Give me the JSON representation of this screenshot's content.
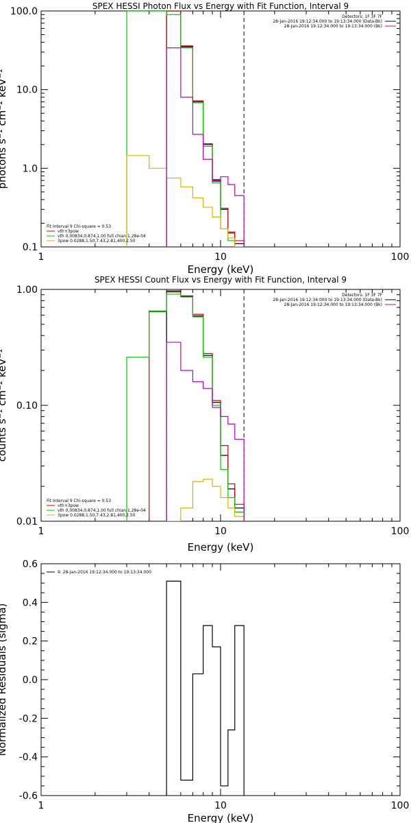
{
  "chart_data": [
    {
      "type": "line",
      "title": "SPEX HESSI Photon Flux vs Energy with Fit Function, Interval 9",
      "xlabel": "Energy (keV)",
      "ylabel": "photons s⁻¹ cm⁻² keV⁻¹",
      "xscale": "log",
      "yscale": "log",
      "xlim": [
        1,
        100
      ],
      "ylim": [
        0.1,
        100
      ],
      "xticks": [
        {
          "v": 1,
          "label": "1"
        },
        {
          "v": 10,
          "label": "10"
        },
        {
          "v": 100,
          "label": "100"
        }
      ],
      "yticks": [
        {
          "v": 0.1,
          "label": "0.1"
        },
        {
          "v": 1,
          "label": "1.0"
        },
        {
          "v": 10,
          "label": "10.0"
        },
        {
          "v": 100,
          "label": "100.0"
        }
      ],
      "edges": [
        3.0,
        4.0,
        5.0,
        6.0,
        7.0,
        8.0,
        9.0,
        10.0,
        11.0,
        12.0,
        13.5
      ],
      "dashed_lines": [
        {
          "x": 5.0,
          "color": "#a000a0"
        },
        {
          "x": 13.5,
          "color": "#000000"
        }
      ],
      "legend_right": [
        {
          "text": "Detectors: 1F 3F 7F",
          "color": ""
        },
        {
          "text": "28-Jan-2016 19:12:34.000 to 19:13:34.000 (Data-Bk)",
          "color": "#000000"
        },
        {
          "text": "28-Jan-2016 19:12:34.000 to 19:13:34.000 (Bk)",
          "color": "#c000c0"
        }
      ],
      "legend_left": [
        {
          "text": "Fit Interval 9   Chi-square = 0.53",
          "color": ""
        },
        {
          "text": "vth+3pow",
          "color": "#d00000"
        },
        {
          "text": "vth 0.00834,0.874,1.00  full chian 1.28e-04",
          "color": "#00cc00"
        },
        {
          "text": "3pow 0.0288,1.50,7.43,2.81,400,2.50",
          "color": "#e0b000"
        }
      ],
      "series": [
        {
          "color": "#000000",
          "values": [
            null,
            null,
            100,
            35,
            7.0,
            2.0,
            0.7,
            0.3,
            0.15,
            0.11
          ]
        },
        {
          "color": "#d00000",
          "values": [
            null,
            null,
            100,
            36,
            7.2,
            2.05,
            0.72,
            0.31,
            0.155,
            0.12
          ]
        },
        {
          "color": "#00cc00",
          "values": [
            100,
            100,
            90,
            34,
            6.8,
            1.9,
            0.65,
            0.17,
            0.12,
            0.1
          ]
        },
        {
          "color": "#e0b000",
          "values": [
            1.45,
            1.0,
            0.75,
            0.58,
            0.42,
            0.32,
            0.24,
            0.17,
            0.13,
            0.1
          ]
        },
        {
          "color": "#c000c0",
          "values": [
            null,
            null,
            34,
            8.0,
            2.7,
            1.3,
            0.68,
            0.78,
            0.62,
            0.45
          ]
        }
      ]
    },
    {
      "type": "line",
      "title": "SPEX HESSI Count Flux vs Energy with Fit Function, Interval 9",
      "xlabel": "Energy (keV)",
      "ylabel": "counts s⁻¹ cm⁻² keV⁻¹",
      "xscale": "log",
      "yscale": "log",
      "xlim": [
        1,
        100
      ],
      "ylim": [
        0.01,
        1
      ],
      "xticks": [
        {
          "v": 1,
          "label": "1"
        },
        {
          "v": 10,
          "label": "10"
        },
        {
          "v": 100,
          "label": "100"
        }
      ],
      "yticks": [
        {
          "v": 0.01,
          "label": "0.01"
        },
        {
          "v": 0.1,
          "label": "0.10"
        },
        {
          "v": 1,
          "label": "1.00"
        }
      ],
      "edges": [
        3.0,
        4.0,
        5.0,
        6.0,
        7.0,
        8.0,
        9.0,
        10.0,
        11.0,
        12.0,
        13.5
      ],
      "dashed_lines": [
        {
          "x": 5.0,
          "color": "#a000a0"
        },
        {
          "x": 13.5,
          "color": "#000000"
        }
      ],
      "legend_right": [
        {
          "text": "Detectors: 1F 3F 7F",
          "color": ""
        },
        {
          "text": "28-Jan-2016 19:12:34.000 to 19:13:34.000 (Data-Bk)",
          "color": "#000000"
        },
        {
          "text": "28-Jan-2016 19:12:34.000 to 19:13:34.000 (Bk)",
          "color": "#c000c0"
        }
      ],
      "legend_left": [
        {
          "text": "Fit Interval 9   Chi-square = 0.53",
          "color": ""
        },
        {
          "text": "vth+3pow",
          "color": "#d00000"
        },
        {
          "text": "vth 0.00834,0.874,1.00  full chian 1.28e-04",
          "color": "#00cc00"
        },
        {
          "text": "3pow 0.0288,1.50,7.43,2.81,400,2.50",
          "color": "#e0b000"
        }
      ],
      "series": [
        {
          "color": "#000000",
          "values": [
            null,
            null,
            0.97,
            0.87,
            0.59,
            0.27,
            0.106,
            0.037,
            0.019,
            0.013
          ]
        },
        {
          "color": "#d00000",
          "values": [
            null,
            0.65,
            0.95,
            0.88,
            0.61,
            0.28,
            0.11,
            0.045,
            0.021,
            0.014
          ]
        },
        {
          "color": "#00cc00",
          "values": [
            0.26,
            0.64,
            0.91,
            0.86,
            0.58,
            0.26,
            0.1,
            0.028,
            0.016,
            0.012
          ]
        },
        {
          "color": "#e0b000",
          "values": [
            null,
            null,
            0.01,
            0.013,
            0.022,
            0.023,
            0.02,
            0.016,
            0.013,
            0.011
          ]
        },
        {
          "color": "#c000c0",
          "values": [
            null,
            null,
            0.35,
            0.2,
            0.16,
            0.14,
            0.096,
            0.08,
            0.069,
            0.051
          ]
        }
      ]
    },
    {
      "type": "line",
      "title": "",
      "xlabel": "Energy (keV)",
      "ylabel": "Normalized Residuals (sigma)",
      "xscale": "log",
      "yscale": "linear",
      "xlim": [
        1,
        100
      ],
      "ylim": [
        -0.6,
        0.6
      ],
      "xticks": [
        {
          "v": 1,
          "label": "1"
        },
        {
          "v": 10,
          "label": "10"
        },
        {
          "v": 100,
          "label": "100"
        }
      ],
      "yticks": [
        {
          "v": 0.6,
          "label": "0.6"
        },
        {
          "v": 0.4,
          "label": "0.4"
        },
        {
          "v": 0.2,
          "label": "0.2"
        },
        {
          "v": 0.0,
          "label": "0.0"
        },
        {
          "v": -0.2,
          "label": "-0.2"
        },
        {
          "v": -0.4,
          "label": "-0.4"
        },
        {
          "v": -0.6,
          "label": "-0.6"
        }
      ],
      "edges": [
        5.0,
        6.0,
        7.0,
        8.0,
        9.0,
        10.0,
        11.0,
        12.0,
        13.5
      ],
      "legend_left": [
        {
          "text": "9: 28-Jan-2016 19:12:34.000 to 19:13:34.000",
          "color": "#000000"
        }
      ],
      "series": [
        {
          "color": "#000000",
          "values": [
            0.51,
            -0.52,
            0.03,
            0.28,
            0.17,
            -0.55,
            -0.26,
            0.28
          ]
        }
      ]
    }
  ]
}
